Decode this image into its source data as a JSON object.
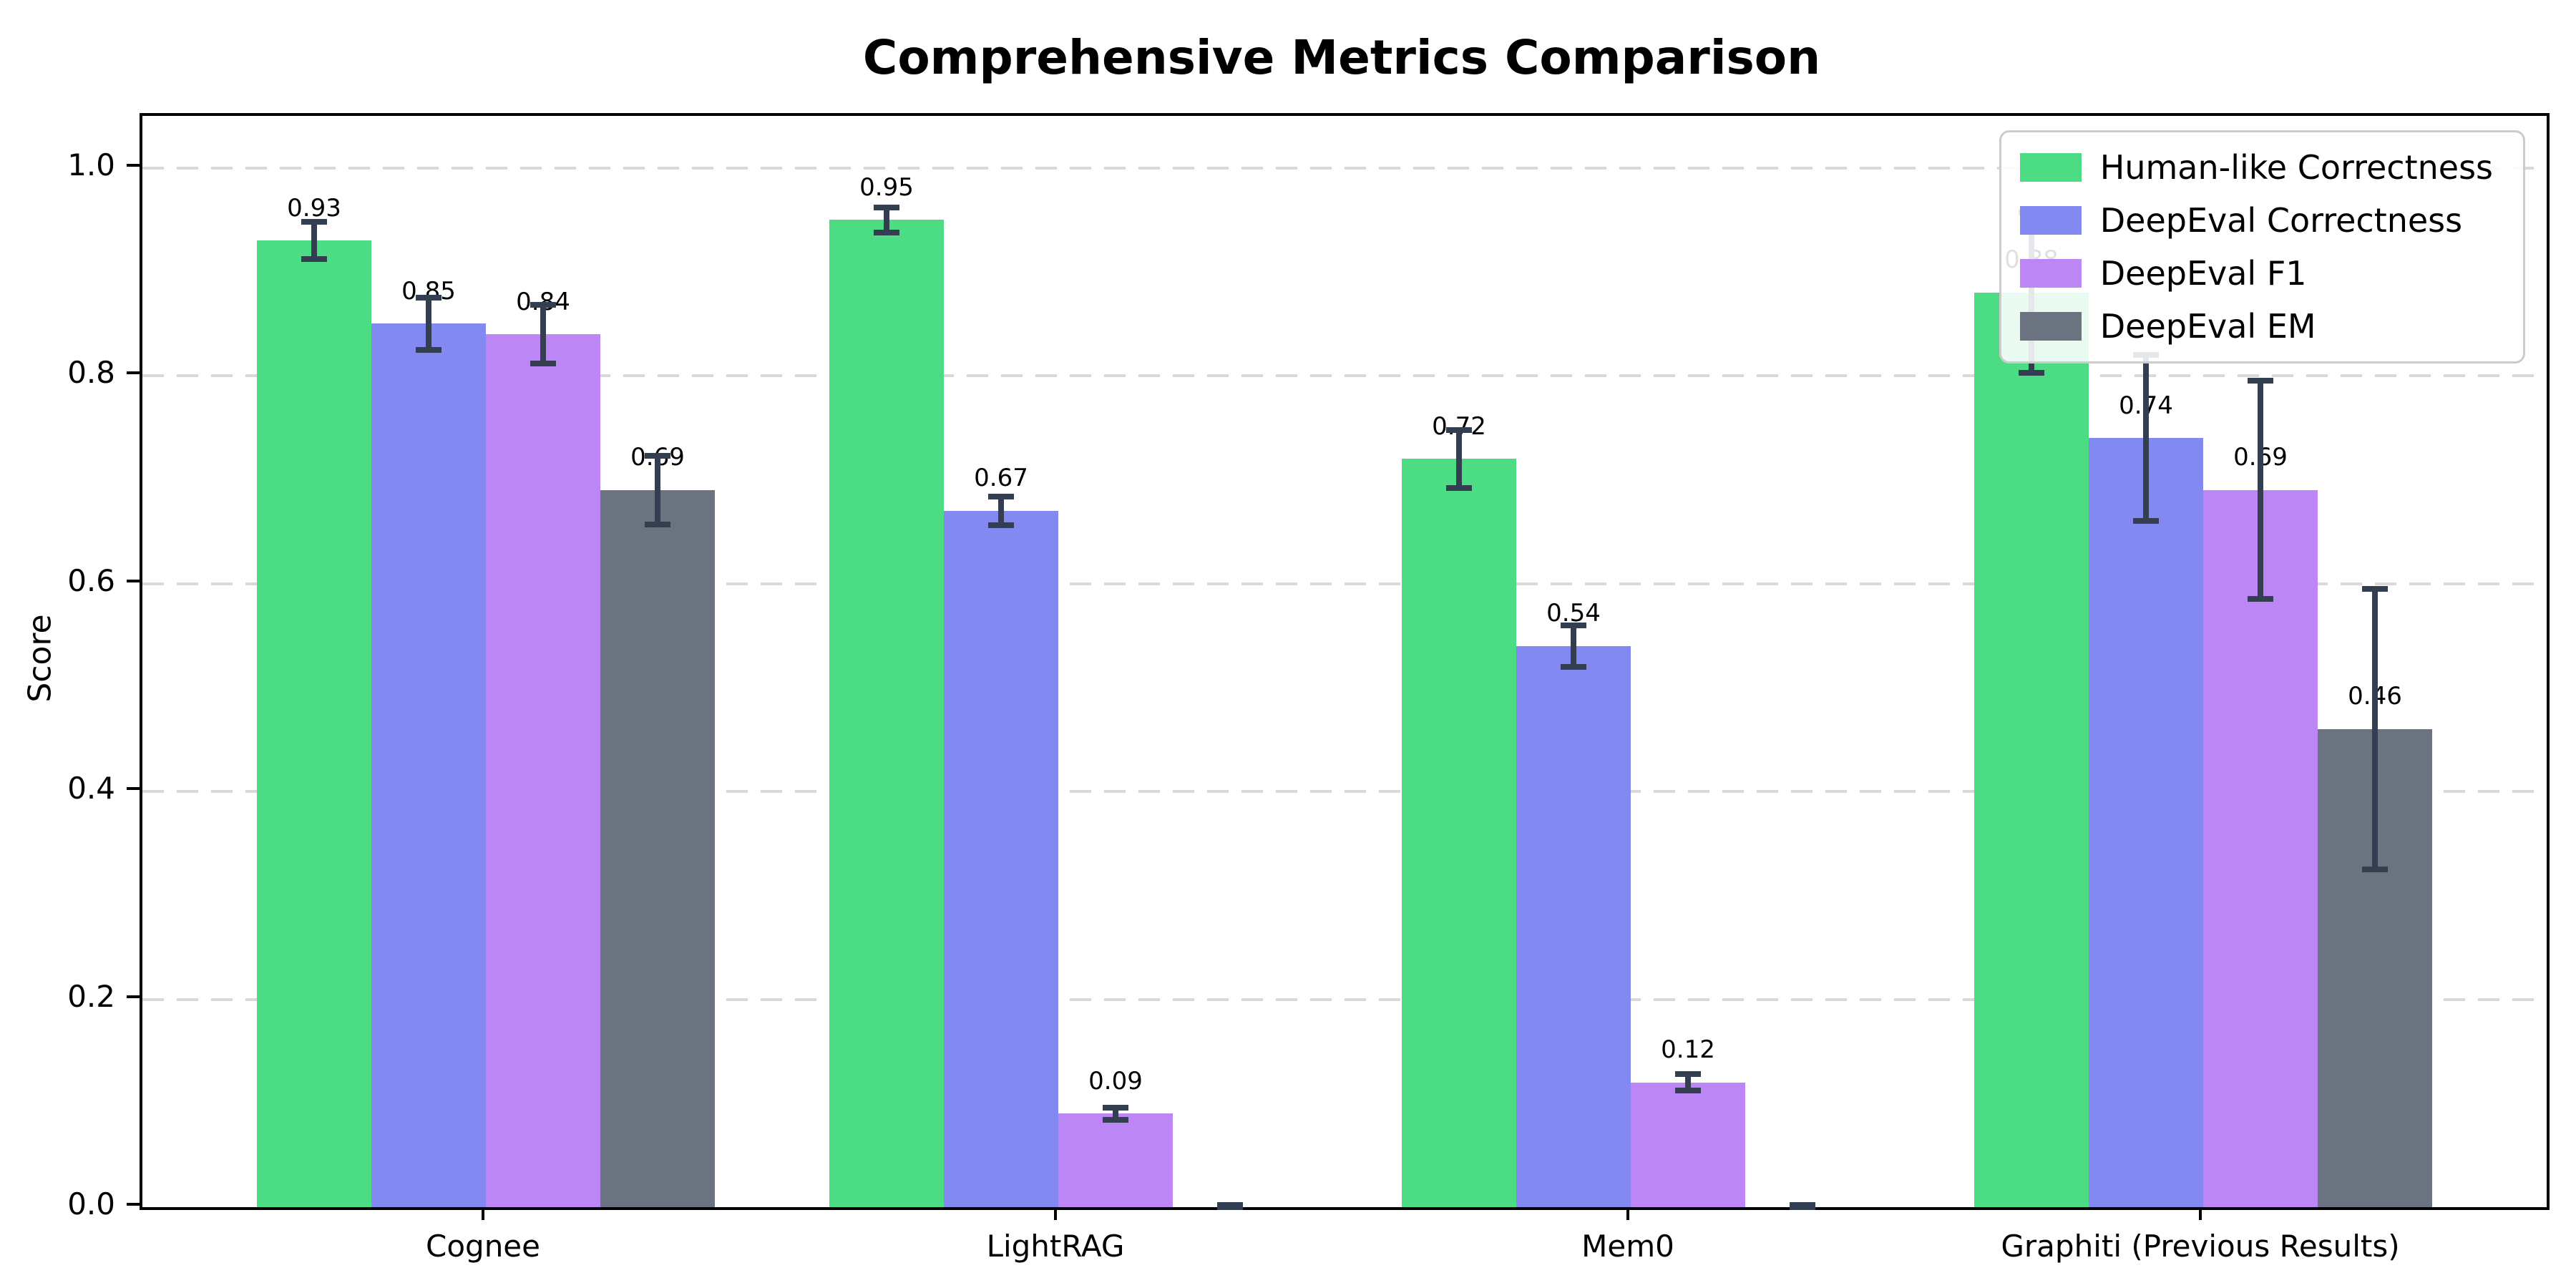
{
  "chart_data": {
    "type": "bar",
    "title": "Comprehensive Metrics Comparison",
    "ylabel": "Score",
    "categories": [
      "Cognee",
      "LightRAG",
      "Mem0",
      "Graphiti (Previous Results)"
    ],
    "series": [
      {
        "name": "Human-like Correctness",
        "color": "#4cdc84",
        "values": [
          0.93,
          0.95,
          0.72,
          0.88
        ],
        "errors": [
          0.018,
          0.012,
          0.028,
          0.077
        ],
        "labels": [
          "0.93",
          "0.95",
          "0.72",
          "0.88"
        ]
      },
      {
        "name": "DeepEval Correctness",
        "color": "#8289f0",
        "values": [
          0.85,
          0.67,
          0.54,
          0.74
        ],
        "errors": [
          0.025,
          0.014,
          0.02,
          0.08
        ],
        "labels": [
          "0.85",
          "0.67",
          "0.54",
          "0.74"
        ]
      },
      {
        "name": "DeepEval F1",
        "color": "#bc86f4",
        "values": [
          0.84,
          0.09,
          0.12,
          0.69
        ],
        "errors": [
          0.028,
          0.006,
          0.008,
          0.105
        ],
        "labels": [
          "0.84",
          "0.09",
          "0.12",
          "0.69"
        ]
      },
      {
        "name": "DeepEval EM",
        "color": "#6b7280",
        "values": [
          0.69,
          0.0,
          0.0,
          0.46
        ],
        "errors": [
          0.033,
          0.002,
          0.002,
          0.135
        ],
        "labels": [
          "0.69",
          null,
          null,
          "0.46"
        ]
      }
    ],
    "yticks": [
      0.0,
      0.2,
      0.4,
      0.6,
      0.8,
      1.0
    ],
    "ylim": [
      0,
      1.05
    ],
    "xlim_units": [
      -0.6,
      3.6
    ],
    "bar_width_units": 0.2,
    "grid": "dashed-horizontal",
    "legend_position": "upper-right",
    "colors": {
      "errorbar": "#333e50",
      "grid": "#d9d9d9",
      "spine": "#000000",
      "background": "#ffffff",
      "legend_border": "#cccccc"
    }
  }
}
